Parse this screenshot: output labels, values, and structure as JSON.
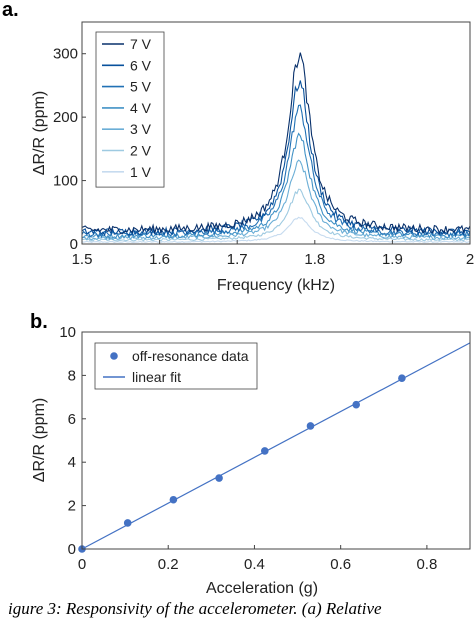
{
  "chart_data": [
    {
      "panel": "a.",
      "type": "line",
      "xlabel": "Frequency (kHz)",
      "ylabel": "ΔR/R (ppm)",
      "xlim": [
        1.5,
        2.0
      ],
      "ylim": [
        0,
        350
      ],
      "xticks": [
        "1.5",
        "1.6",
        "1.7",
        "1.8",
        "1.9",
        "2"
      ],
      "yticks": [
        "0",
        "100",
        "200",
        "300"
      ],
      "legend_position": "top-left",
      "resonance_khz": 1.78,
      "series": [
        {
          "name": "7 V",
          "peak": 298,
          "floor": 21,
          "color": "#08306b"
        },
        {
          "name": "6 V",
          "peak": 255,
          "floor": 18,
          "color": "#08519c"
        },
        {
          "name": "5 V",
          "peak": 213,
          "floor": 15,
          "color": "#2171b5"
        },
        {
          "name": "4 V",
          "peak": 170,
          "floor": 12,
          "color": "#4292c6"
        },
        {
          "name": "3 V",
          "peak": 128,
          "floor": 9,
          "color": "#6baed6"
        },
        {
          "name": "2 V",
          "peak": 85,
          "floor": 6,
          "color": "#9ecae1"
        },
        {
          "name": "1 V",
          "peak": 42,
          "floor": 3,
          "color": "#c6dbef"
        }
      ]
    },
    {
      "panel": "b.",
      "type": "scatter",
      "xlabel": "Acceleration (g)",
      "ylabel": "ΔR/R (ppm)",
      "xlim": [
        0,
        0.9
      ],
      "ylim": [
        0,
        10
      ],
      "xticks": [
        "0",
        "0.2",
        "0.4",
        "0.6",
        "0.8"
      ],
      "yticks": [
        "0",
        "2",
        "4",
        "6",
        "8",
        "10"
      ],
      "legend_position": "top-left",
      "series": [
        {
          "name": "off-resonance data",
          "kind": "markers",
          "x": [
            0,
            0.106,
            0.212,
            0.318,
            0.424,
            0.53,
            0.636,
            0.742
          ],
          "y": [
            0.0,
            1.2,
            2.27,
            3.27,
            4.52,
            5.67,
            6.65,
            7.87
          ]
        },
        {
          "name": "linear fit",
          "kind": "line",
          "x": [
            0,
            0.9
          ],
          "y": [
            0,
            9.5
          ]
        }
      ],
      "marker_color": "#4472c4",
      "line_color": "#4472c4"
    }
  ],
  "caption": "igure 3: Responsivity of the accelerometer. (a) Relative"
}
